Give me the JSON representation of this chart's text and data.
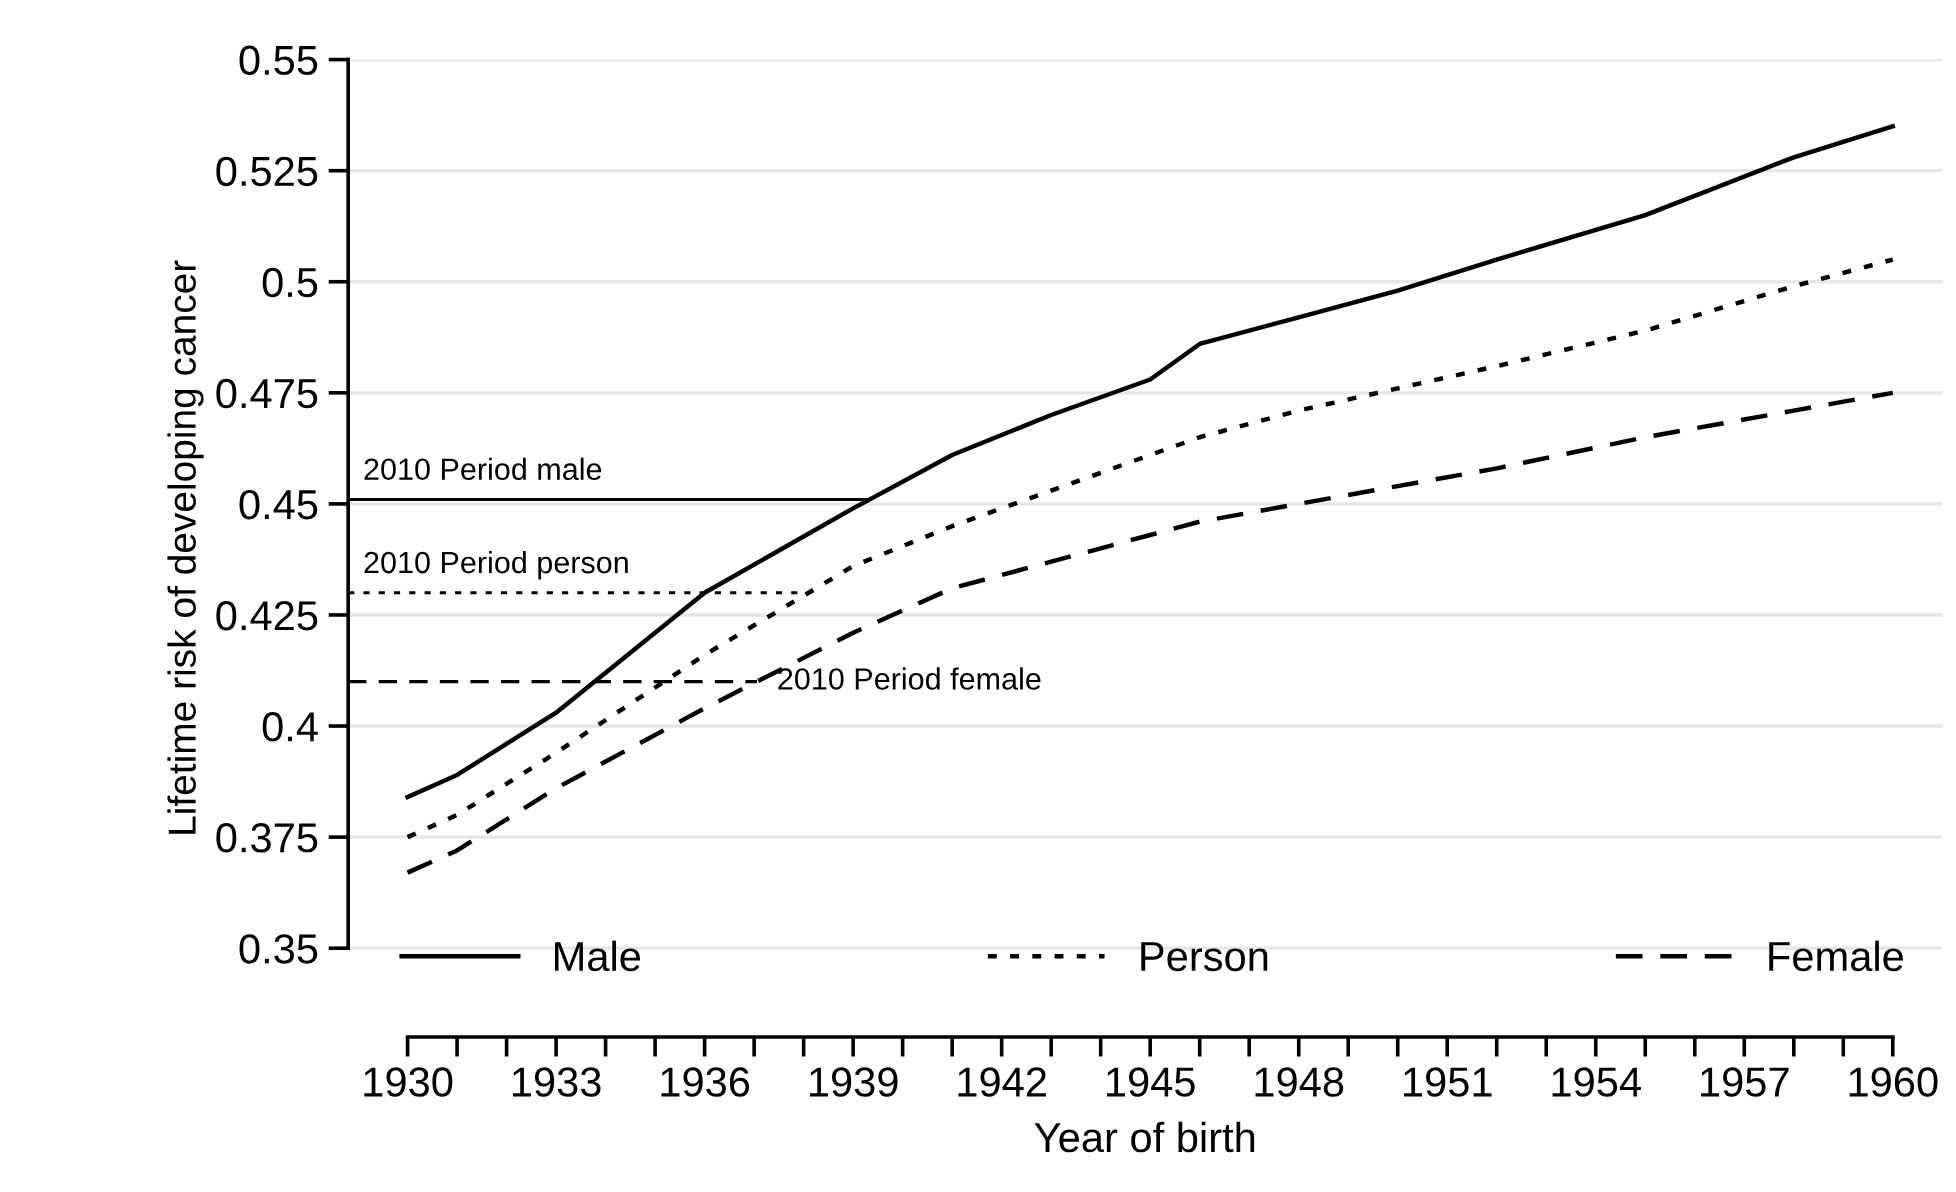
{
  "chart_data": {
    "type": "line",
    "xlabel": "Year of birth",
    "ylabel": "Lifetime risk of developing cancer",
    "x": [
      1930,
      1931,
      1933,
      1936,
      1939,
      1941,
      1943,
      1945,
      1946,
      1948,
      1950,
      1952,
      1955,
      1958,
      1960
    ],
    "series": [
      {
        "name": "Male",
        "color": "#000000",
        "line_style": "solid",
        "values": [
          0.384,
          0.389,
          0.403,
          0.43,
          0.449,
          0.461,
          0.47,
          0.478,
          0.486,
          0.492,
          0.498,
          0.505,
          0.515,
          0.528,
          0.535
        ]
      },
      {
        "name": "Person",
        "color": "#000000",
        "line_style": "dotted",
        "values": [
          0.375,
          0.38,
          0.394,
          0.416,
          0.436,
          0.445,
          0.453,
          0.461,
          0.465,
          0.471,
          0.476,
          0.481,
          0.489,
          0.499,
          0.505
        ]
      },
      {
        "name": "Female",
        "color": "#000000",
        "line_style": "dashed",
        "values": [
          0.367,
          0.372,
          0.386,
          0.404,
          0.421,
          0.431,
          0.437,
          0.443,
          0.446,
          0.45,
          0.454,
          0.458,
          0.465,
          0.471,
          0.475
        ]
      }
    ],
    "ref_lines": [
      {
        "axis": "y",
        "value": 0.451,
        "label": "2010 Period male",
        "color": "#000000",
        "line_style": "solid"
      },
      {
        "axis": "y",
        "value": 0.43,
        "label": "2010 Period person",
        "color": "#000000",
        "line_style": "dotted"
      },
      {
        "axis": "y",
        "value": 0.41,
        "label": "2010 Period female",
        "color": "#000000",
        "line_style": "dashed"
      }
    ],
    "xlim": [
      1928.8,
      1961
    ],
    "ylim": [
      0.33,
      0.55
    ],
    "xticks": [
      1930,
      {
        "value": 1931,
        "label": null
      },
      {
        "value": 1932,
        "label": null
      },
      1933,
      {
        "value": 1934,
        "label": null
      },
      {
        "value": 1935,
        "label": null
      },
      1936,
      {
        "value": 1937,
        "label": null
      },
      {
        "value": 1938,
        "label": null
      },
      1939,
      {
        "value": 1940,
        "label": null
      },
      {
        "value": 1941,
        "label": null
      },
      1942,
      {
        "value": 1943,
        "label": null
      },
      {
        "value": 1944,
        "label": null
      },
      1945,
      {
        "value": 1946,
        "label": null
      },
      {
        "value": 1947,
        "label": null
      },
      1948,
      {
        "value": 1949,
        "label": null
      },
      {
        "value": 1950,
        "label": null
      },
      1951,
      {
        "value": 1952,
        "label": null
      },
      {
        "value": 1953,
        "label": null
      },
      1954,
      {
        "value": 1955,
        "label": null
      },
      {
        "value": 1956,
        "label": null
      },
      1957,
      {
        "value": 1958,
        "label": null
      },
      {
        "value": 1959,
        "label": null
      },
      1960
    ],
    "yticks": [
      0.35,
      0.375,
      0.4,
      0.425,
      0.45,
      0.475,
      0.5,
      0.525,
      0.55
    ],
    "grid": "y",
    "legend": "bottom",
    "marker": "none"
  }
}
